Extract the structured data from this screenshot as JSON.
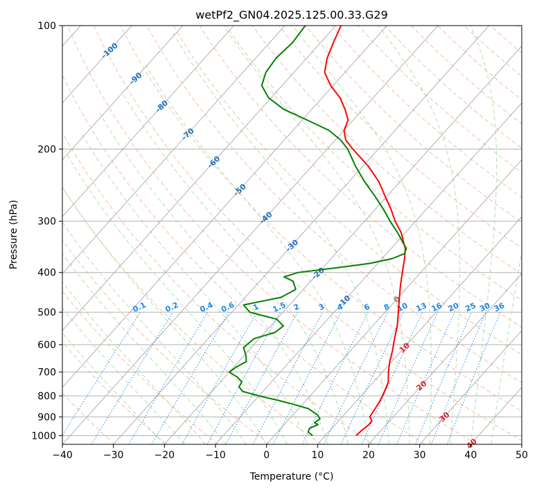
{
  "chart_data": {
    "type": "line",
    "title": "wetPf2_GN04.2025.125.00.33.G29",
    "xlabel": "Temperature (°C)",
    "ylabel": "Pressure (hPa)",
    "xlim": [
      -40,
      50
    ],
    "ylim": [
      1050,
      100
    ],
    "y_scale": "log",
    "grid": true,
    "x_ticks": [
      -40,
      -30,
      -20,
      -10,
      0,
      10,
      20,
      30,
      40,
      50
    ],
    "y_ticks": [
      100,
      200,
      300,
      400,
      500,
      600,
      700,
      800,
      900,
      1000
    ],
    "skew_t": true,
    "series": [
      {
        "role": "temperature",
        "color": "#ff0000",
        "points": [
          [
            1000,
            16.0
          ],
          [
            970,
            16.2
          ],
          [
            940,
            16.6
          ],
          [
            920,
            16.5
          ],
          [
            900,
            15.4
          ],
          [
            870,
            15.1
          ],
          [
            830,
            14.7
          ],
          [
            800,
            14.2
          ],
          [
            770,
            13.6
          ],
          [
            740,
            12.9
          ],
          [
            700,
            11.2
          ],
          [
            660,
            9.6
          ],
          [
            620,
            8.2
          ],
          [
            580,
            6.5
          ],
          [
            540,
            4.8
          ],
          [
            500,
            2.6
          ],
          [
            460,
            0.2
          ],
          [
            430,
            -1.7
          ],
          [
            400,
            -3.6
          ],
          [
            370,
            -5.6
          ],
          [
            350,
            -7.2
          ],
          [
            320,
            -10.8
          ],
          [
            300,
            -14.0
          ],
          [
            280,
            -17.0
          ],
          [
            260,
            -20.5
          ],
          [
            240,
            -24.2
          ],
          [
            220,
            -29.0
          ],
          [
            200,
            -35.0
          ],
          [
            190,
            -38.0
          ],
          [
            180,
            -40.0
          ],
          [
            170,
            -41.0
          ],
          [
            160,
            -43.5
          ],
          [
            150,
            -46.5
          ],
          [
            140,
            -50.5
          ],
          [
            130,
            -54.0
          ],
          [
            120,
            -56.0
          ],
          [
            110,
            -57.5
          ],
          [
            100,
            -59.0
          ]
        ]
      },
      {
        "role": "dewpoint",
        "color": "#008000",
        "points": [
          [
            1000,
            7.5
          ],
          [
            980,
            6.0
          ],
          [
            960,
            5.6
          ],
          [
            940,
            6.6
          ],
          [
            930,
            5.6
          ],
          [
            910,
            6.0
          ],
          [
            890,
            4.8
          ],
          [
            860,
            2.0
          ],
          [
            840,
            -1.5
          ],
          [
            820,
            -5.5
          ],
          [
            800,
            -10.0
          ],
          [
            780,
            -14.0
          ],
          [
            760,
            -15.5
          ],
          [
            740,
            -15.8
          ],
          [
            720,
            -17.5
          ],
          [
            700,
            -20.0
          ],
          [
            680,
            -19.5
          ],
          [
            660,
            -18.5
          ],
          [
            640,
            -19.5
          ],
          [
            610,
            -21.5
          ],
          [
            580,
            -21.0
          ],
          [
            560,
            -18.0
          ],
          [
            540,
            -17.5
          ],
          [
            520,
            -20.0
          ],
          [
            500,
            -26.5
          ],
          [
            480,
            -29.0
          ],
          [
            460,
            -23.0
          ],
          [
            440,
            -21.5
          ],
          [
            420,
            -23.5
          ],
          [
            410,
            -26.0
          ],
          [
            400,
            -24.0
          ],
          [
            390,
            -17.5
          ],
          [
            380,
            -11.5
          ],
          [
            370,
            -8.0
          ],
          [
            360,
            -6.5
          ],
          [
            350,
            -7.0
          ],
          [
            320,
            -11.5
          ],
          [
            300,
            -15.0
          ],
          [
            280,
            -18.5
          ],
          [
            260,
            -22.5
          ],
          [
            240,
            -27.0
          ],
          [
            220,
            -31.5
          ],
          [
            200,
            -36.0
          ],
          [
            190,
            -39.0
          ],
          [
            180,
            -43.0
          ],
          [
            170,
            -49.0
          ],
          [
            160,
            -55.5
          ],
          [
            150,
            -60.5
          ],
          [
            140,
            -64.0
          ],
          [
            130,
            -65.5
          ],
          [
            120,
            -66.0
          ],
          [
            110,
            -65.5
          ],
          [
            100,
            -66.0
          ]
        ]
      }
    ],
    "isotherm_labels": [
      "-100",
      "-90",
      "-80",
      "-70",
      "-60",
      "-50",
      "-40",
      "-30",
      "-20",
      "-10",
      "0",
      "10",
      "20",
      "30",
      "40"
    ],
    "isotherm_label_values": [
      -100,
      -90,
      -80,
      -70,
      -60,
      -50,
      -40,
      -30,
      -20,
      -10,
      0,
      10,
      20,
      30,
      40
    ],
    "mixing_ratio_labels": [
      "0.1",
      "0.2",
      "0.4",
      "0.6",
      "1",
      "1.5",
      "2",
      "3",
      "4",
      "6",
      "8",
      "10",
      "13",
      "16",
      "20",
      "25",
      "30",
      "36"
    ],
    "mixing_ratio_values": [
      0.1,
      0.2,
      0.4,
      0.6,
      1,
      1.5,
      2,
      3,
      4,
      6,
      8,
      10,
      13,
      16,
      20,
      25,
      30,
      36
    ],
    "colors": {
      "isotherm": "#b0b0b0",
      "dry_adiabat": "#f4a582",
      "moist_adiabat": "#a6d8a6",
      "mixing_ratio": "#1e88e5",
      "label_cold": "#1f6fbf",
      "label_warm": "#d62728",
      "label_zero": "#808080"
    }
  }
}
